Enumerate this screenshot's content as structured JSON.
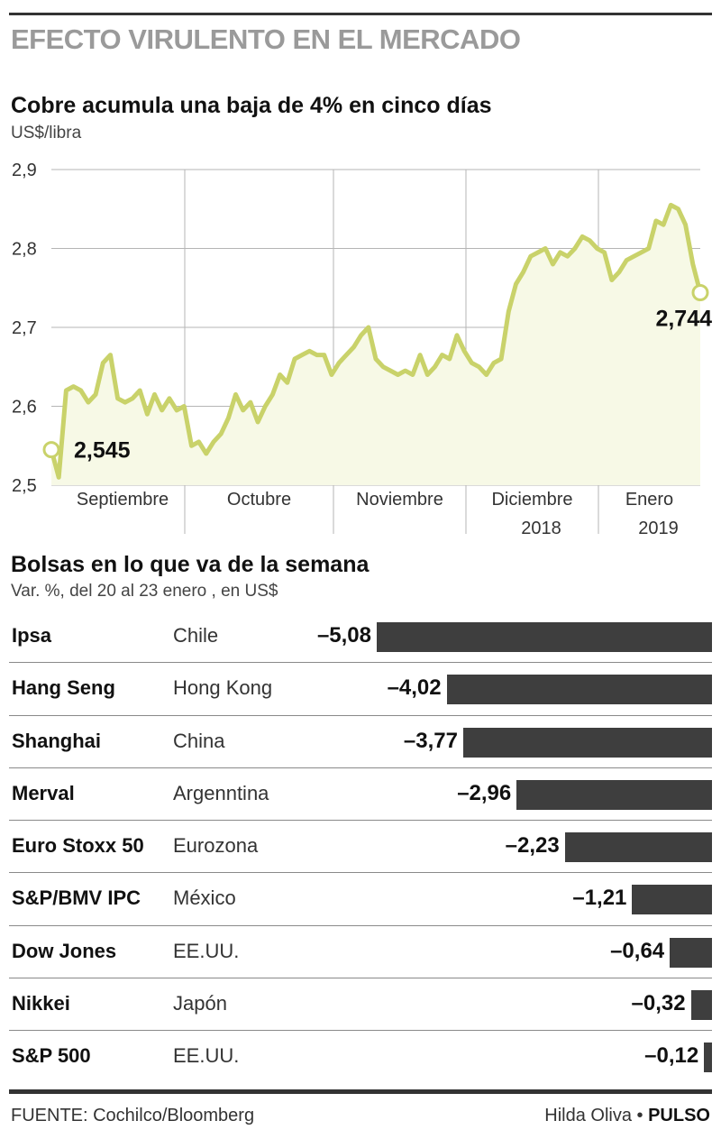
{
  "header": {
    "kicker": "EFECTO VIRULENTO EN EL MERCADO"
  },
  "footer": {
    "source": "FUENTE: Cochilco/Bloomberg",
    "author": "Hilda Oliva •",
    "brand": "PULSO"
  },
  "colors": {
    "line": "#c9d26a",
    "area": "#f7f9e6",
    "bar": "#3e3e3e",
    "kicker": "#9a9a9a"
  },
  "chart_data": [
    {
      "type": "line",
      "title": "Cobre acumula una baja de 4% en cinco días",
      "ylabel": "US$/libra",
      "ylim": [
        2.5,
        2.9
      ],
      "yticks": [
        "2,5",
        "2,6",
        "2,7",
        "2,8",
        "2,9"
      ],
      "ytick_values": [
        2.5,
        2.6,
        2.7,
        2.8,
        2.9
      ],
      "grid": true,
      "months": [
        {
          "label": "Septiembre",
          "sub": ""
        },
        {
          "label": "Octubre",
          "sub": ""
        },
        {
          "label": "Noviembre",
          "sub": ""
        },
        {
          "label": "Diciembre",
          "sub": "2018"
        },
        {
          "label": "Enero",
          "sub": "2019"
        }
      ],
      "values": [
        2.545,
        2.51,
        2.62,
        2.625,
        2.62,
        2.605,
        2.615,
        2.655,
        2.665,
        2.61,
        2.605,
        2.61,
        2.62,
        2.59,
        2.615,
        2.595,
        2.61,
        2.595,
        2.6,
        2.55,
        2.555,
        2.54,
        2.555,
        2.565,
        2.585,
        2.615,
        2.595,
        2.605,
        2.58,
        2.6,
        2.615,
        2.64,
        2.63,
        2.66,
        2.665,
        2.67,
        2.665,
        2.665,
        2.64,
        2.655,
        2.665,
        2.675,
        2.69,
        2.7,
        2.66,
        2.65,
        2.645,
        2.64,
        2.645,
        2.64,
        2.665,
        2.64,
        2.65,
        2.665,
        2.66,
        2.69,
        2.67,
        2.655,
        2.65,
        2.64,
        2.655,
        2.66,
        2.72,
        2.755,
        2.77,
        2.79,
        2.795,
        2.8,
        2.78,
        2.795,
        2.79,
        2.8,
        2.815,
        2.81,
        2.8,
        2.795,
        2.76,
        2.77,
        2.785,
        2.79,
        2.795,
        2.8,
        2.835,
        2.83,
        2.855,
        2.85,
        2.83,
        2.78,
        2.744
      ],
      "annotations": [
        {
          "label": "2,545",
          "value": 2.545,
          "at": "start"
        },
        {
          "label": "2,744",
          "value": 2.744,
          "at": "end"
        }
      ]
    },
    {
      "type": "bar",
      "title": "Bolsas en lo que va de la semana",
      "subtitle": "Var. %, del 20 al 23 enero , en US$",
      "orientation": "horizontal",
      "xlim": [
        -5.08,
        0
      ],
      "rows": [
        {
          "index": "Ipsa",
          "country": "Chile",
          "value": -5.08,
          "label": "–5,08"
        },
        {
          "index": "Hang Seng",
          "country": "Hong Kong",
          "value": -4.02,
          "label": "–4,02"
        },
        {
          "index": "Shanghai",
          "country": "China",
          "value": -3.77,
          "label": "–3,77"
        },
        {
          "index": "Merval",
          "country": "Argenntina",
          "value": -2.96,
          "label": "–2,96"
        },
        {
          "index": "Euro Stoxx 50",
          "country": "Eurozona",
          "value": -2.23,
          "label": "–2,23"
        },
        {
          "index": "S&P/BMV IPC",
          "country": "México",
          "value": -1.21,
          "label": "–1,21"
        },
        {
          "index": "Dow Jones",
          "country": "EE.UU.",
          "value": -0.64,
          "label": "–0,64"
        },
        {
          "index": "Nikkei",
          "country": "Japón",
          "value": -0.32,
          "label": "–0,32"
        },
        {
          "index": "S&P 500",
          "country": "EE.UU.",
          "value": -0.12,
          "label": "–0,12"
        }
      ]
    }
  ]
}
